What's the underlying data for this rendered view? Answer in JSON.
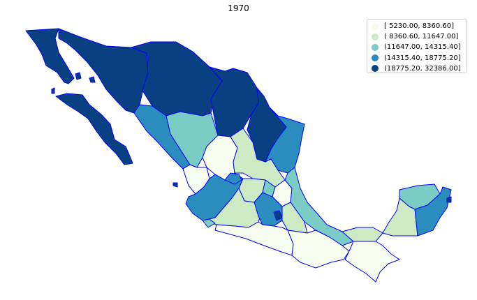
{
  "title": "1970",
  "legend": [
    {
      "label": "[ 5230.00,  8360.60]",
      "color": "#f7fcf0"
    },
    {
      "label": "( 8360.60, 11647.00]",
      "color": "#ccebc5"
    },
    {
      "label": "(11647.00, 14315.40]",
      "color": "#7bccc4"
    },
    {
      "label": "(14315.40, 18775.20]",
      "color": "#2b8cbe"
    },
    {
      "label": "(18775.20, 32386.00]",
      "color": "#084081"
    }
  ],
  "border_color": "#0000ff"
}
